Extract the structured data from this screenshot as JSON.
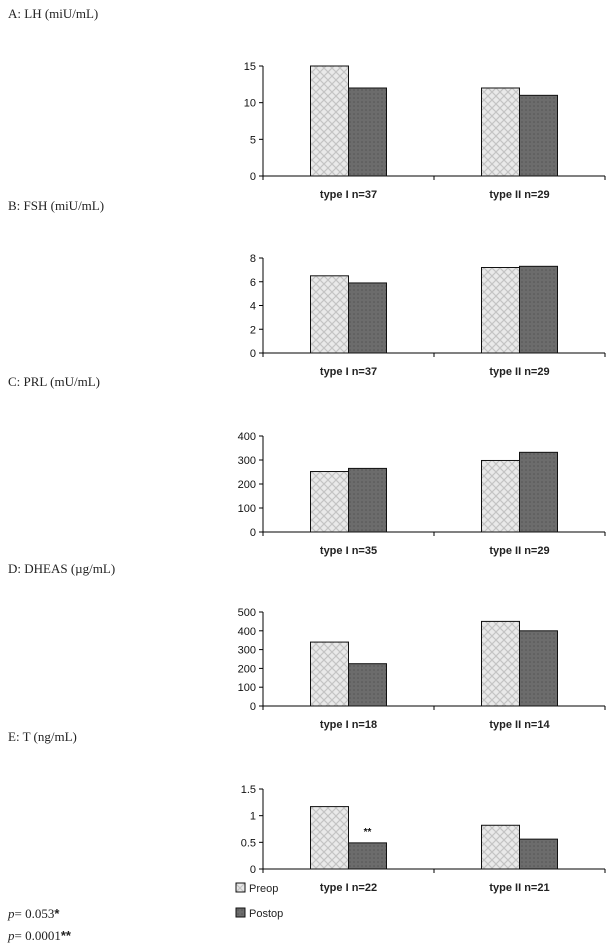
{
  "chart_data": [
    {
      "type": "bar",
      "title": "A: LH (miU/mL)",
      "categories": [
        "type I n=37",
        "type II n=29"
      ],
      "series": [
        {
          "name": "Preop",
          "values": [
            15,
            12
          ]
        },
        {
          "name": "Postop",
          "values": [
            12,
            11
          ]
        }
      ],
      "ylim": [
        0,
        15
      ],
      "yticks": [
        0,
        5,
        10,
        15
      ],
      "annotations": []
    },
    {
      "type": "bar",
      "title": "B: FSH (miU/mL)",
      "categories": [
        "type I n=37",
        "type II n=29"
      ],
      "series": [
        {
          "name": "Preop",
          "values": [
            6.5,
            7.2
          ]
        },
        {
          "name": "Postop",
          "values": [
            5.9,
            7.3
          ]
        }
      ],
      "ylim": [
        0,
        8
      ],
      "yticks": [
        0,
        2,
        4,
        6,
        8
      ],
      "annotations": []
    },
    {
      "type": "bar",
      "title": "C: PRL (mU/mL)",
      "categories": [
        "type I n=35",
        "type II n=29"
      ],
      "series": [
        {
          "name": "Preop",
          "values": [
            252,
            298
          ]
        },
        {
          "name": "Postop",
          "values": [
            265,
            332
          ]
        }
      ],
      "ylim": [
        0,
        400
      ],
      "yticks": [
        0,
        100,
        200,
        300,
        400
      ],
      "annotations": []
    },
    {
      "type": "bar",
      "title": "D: DHEAS (µg/mL)",
      "categories": [
        "type I n=18",
        "type II n=14"
      ],
      "series": [
        {
          "name": "Preop",
          "values": [
            340,
            450
          ]
        },
        {
          "name": "Postop",
          "values": [
            225,
            400
          ]
        }
      ],
      "ylim": [
        0,
        500
      ],
      "yticks": [
        0,
        100,
        200,
        300,
        400,
        500
      ],
      "annotations": []
    },
    {
      "type": "bar",
      "title": "E: T (ng/mL)",
      "categories": [
        "type I n=22",
        "type II n=21"
      ],
      "series": [
        {
          "name": "Preop",
          "values": [
            1.17,
            0.82
          ]
        },
        {
          "name": "Postop",
          "values": [
            0.49,
            0.56
          ]
        }
      ],
      "ylim": [
        0,
        1.5
      ],
      "yticks": [
        0,
        0.5,
        1,
        1.5
      ],
      "annotations": [
        {
          "category": 0,
          "series": 1,
          "text": "**"
        }
      ]
    }
  ],
  "legend": [
    {
      "name": "Preop"
    },
    {
      "name": "Postop"
    }
  ],
  "footnotes": [
    {
      "prefix": "p",
      "text": "= 0.053",
      "stars": "*"
    },
    {
      "prefix": "p",
      "text": "= 0.0001",
      "stars": "**"
    }
  ],
  "colors": {
    "preop_fill": "#e9e9e9",
    "preop_pattern": "#c4c4c4",
    "postop_fill": "#6c6c6c",
    "postop_pattern": "#555555",
    "axis": "#000000"
  }
}
